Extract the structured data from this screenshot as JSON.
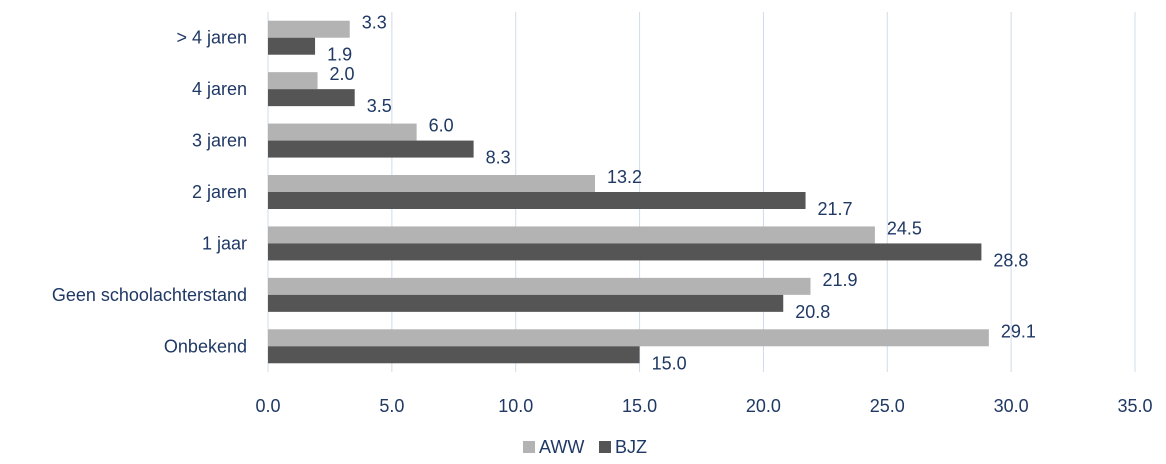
{
  "chart_data": {
    "type": "bar",
    "orientation": "horizontal",
    "categories": [
      "> 4 jaren",
      "4 jaren",
      "3 jaren",
      "2 jaren",
      "1 jaar",
      "Geen schoolachterstand",
      "Onbekend"
    ],
    "series": [
      {
        "name": "AWW",
        "color": "#b3b3b3",
        "values": [
          3.3,
          2.0,
          6.0,
          13.2,
          24.5,
          21.9,
          29.1
        ],
        "labels": [
          "3.3",
          "2.0",
          "6.0",
          "13.2",
          "24.5",
          "21.9",
          "29.1"
        ]
      },
      {
        "name": "BJZ",
        "color": "#555555",
        "values": [
          1.9,
          3.5,
          8.3,
          21.7,
          28.8,
          20.8,
          15.0
        ],
        "labels": [
          "1.9",
          "3.5",
          "8.3",
          "21.7",
          "28.8",
          "20.8",
          "15.0"
        ]
      }
    ],
    "xlim": [
      0,
      35
    ],
    "xticks": [
      0,
      5,
      10,
      15,
      20,
      25,
      30,
      35
    ],
    "xtick_labels": [
      "0.0",
      "5.0",
      "10.0",
      "15.0",
      "20.0",
      "25.0",
      "30.0",
      "35.0"
    ],
    "title": "",
    "xlabel": "",
    "ylabel": "",
    "grid": "vertical",
    "legend_position": "bottom"
  },
  "colors": {
    "text": "#1f3864",
    "grid": "#cfdce8"
  }
}
